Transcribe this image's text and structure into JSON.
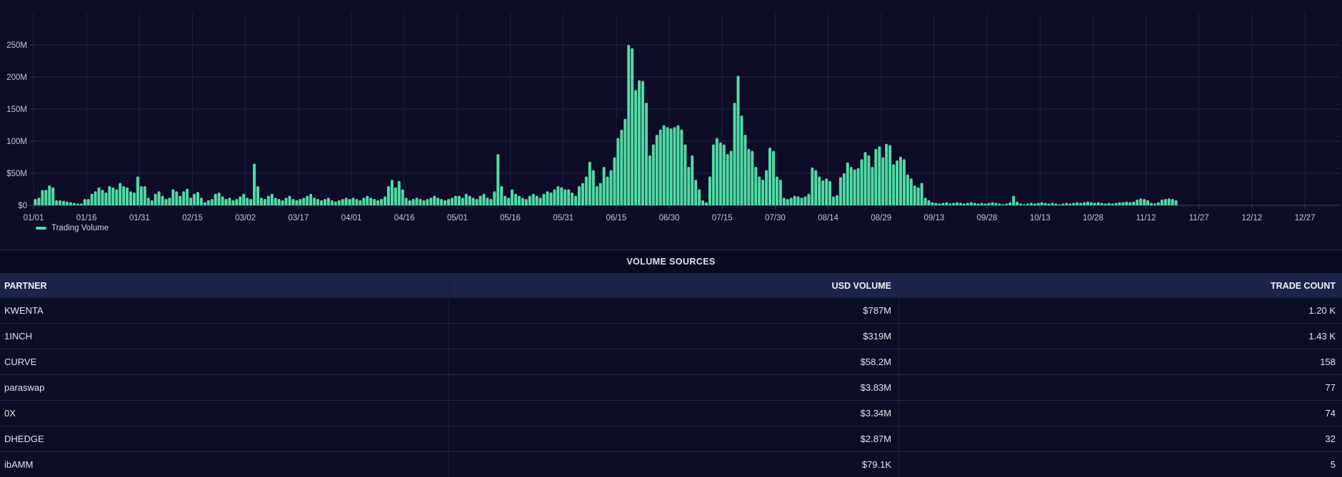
{
  "chart": {
    "legend_label": "Trading Volume",
    "y_axis_labels": [
      "$0",
      "$50M",
      "100M",
      "150M",
      "200M",
      "250M"
    ],
    "x_axis_labels": [
      "01/01",
      "01/16",
      "01/31",
      "02/15",
      "03/02",
      "03/17",
      "04/01",
      "04/16",
      "05/01",
      "05/16",
      "05/31",
      "06/15",
      "06/30",
      "07/15",
      "07/30",
      "08/14",
      "08/29",
      "09/13",
      "09/28",
      "10/13",
      "10/28",
      "11/12",
      "11/27",
      "12/12",
      "12/27"
    ]
  },
  "chart_data": {
    "type": "bar",
    "title": "",
    "xlabel": "",
    "ylabel": "",
    "unit": "USD millions",
    "ylim": [
      0,
      300
    ],
    "y_ticks_millions": [
      0,
      50,
      100,
      150,
      200,
      250
    ],
    "grid": true,
    "bar_color": "#4fdca4",
    "legend_position": "bottom-left",
    "series": [
      {
        "name": "Trading Volume",
        "x_start": "01/01",
        "x_frequency": "daily",
        "values_millions_usd": [
          10,
          12,
          24,
          24,
          31,
          28,
          8,
          8,
          7,
          6,
          5,
          4,
          3,
          3,
          10,
          10,
          18,
          22,
          28,
          24,
          20,
          30,
          28,
          25,
          35,
          30,
          28,
          22,
          20,
          45,
          30,
          30,
          12,
          8,
          18,
          22,
          15,
          10,
          12,
          25,
          22,
          15,
          22,
          26,
          12,
          18,
          21,
          12,
          5,
          8,
          10,
          18,
          20,
          14,
          10,
          12,
          8,
          10,
          14,
          18,
          12,
          10,
          65,
          30,
          12,
          10,
          15,
          18,
          12,
          10,
          8,
          12,
          15,
          10,
          8,
          10,
          12,
          15,
          18,
          12,
          10,
          8,
          10,
          12,
          8,
          6,
          8,
          10,
          12,
          10,
          12,
          10,
          8,
          12,
          15,
          12,
          10,
          8,
          10,
          14,
          30,
          40,
          28,
          38,
          25,
          12,
          8,
          10,
          12,
          10,
          8,
          10,
          12,
          15,
          12,
          10,
          8,
          10,
          12,
          15,
          15,
          12,
          18,
          15,
          12,
          10,
          15,
          18,
          12,
          10,
          22,
          80,
          30,
          15,
          12,
          25,
          18,
          15,
          12,
          10,
          15,
          18,
          15,
          12,
          18,
          22,
          20,
          25,
          30,
          28,
          25,
          25,
          20,
          15,
          30,
          35,
          45,
          68,
          55,
          30,
          35,
          60,
          45,
          55,
          75,
          105,
          118,
          135,
          250,
          245,
          180,
          195,
          194,
          160,
          78,
          95,
          110,
          118,
          125,
          122,
          120,
          122,
          125,
          118,
          95,
          60,
          78,
          40,
          25,
          8,
          5,
          45,
          95,
          105,
          98,
          95,
          80,
          85,
          160,
          202,
          140,
          110,
          88,
          85,
          60,
          45,
          40,
          55,
          90,
          85,
          45,
          40,
          12,
          10,
          12,
          15,
          14,
          12,
          14,
          18,
          59,
          55,
          45,
          39,
          42,
          38,
          14,
          16,
          44,
          50,
          67,
          60,
          56,
          58,
          72,
          83,
          78,
          60,
          88,
          92,
          75,
          96,
          94,
          64,
          70,
          76,
          72,
          48,
          42,
          31,
          28,
          35,
          12,
          8,
          5,
          4,
          3,
          4,
          5,
          3,
          4,
          5,
          4,
          3,
          4,
          5,
          4,
          3,
          4,
          3,
          4,
          5,
          4,
          3,
          2,
          3,
          5,
          15,
          6,
          3,
          2,
          3,
          4,
          3,
          4,
          5,
          4,
          3,
          4,
          3,
          2,
          3,
          4,
          3,
          4,
          5,
          4,
          5,
          6,
          5,
          4,
          5,
          4,
          3,
          4,
          3,
          4,
          5,
          5,
          6,
          5,
          6,
          9,
          11,
          10,
          8,
          4,
          3,
          5,
          9,
          10,
          11,
          10,
          8
        ]
      }
    ]
  },
  "table": {
    "title": "VOLUME SOURCES",
    "columns": [
      {
        "label": "PARTNER",
        "align": "left"
      },
      {
        "label": "USD VOLUME",
        "align": "right"
      },
      {
        "label": "TRADE COUNT",
        "align": "right"
      }
    ],
    "rows": [
      {
        "partner": "KWENTA",
        "usd_volume": "$787M",
        "trade_count": "1.20 K"
      },
      {
        "partner": "1INCH",
        "usd_volume": "$319M",
        "trade_count": "1.43 K"
      },
      {
        "partner": "CURVE",
        "usd_volume": "$58.2M",
        "trade_count": "158"
      },
      {
        "partner": "paraswap",
        "usd_volume": "$3.83M",
        "trade_count": "77"
      },
      {
        "partner": "0X",
        "usd_volume": "$3.34M",
        "trade_count": "74"
      },
      {
        "partner": "DHEDGE",
        "usd_volume": "$2.87M",
        "trade_count": "32"
      },
      {
        "partner": "ibAMM",
        "usd_volume": "$79.1K",
        "trade_count": "5"
      }
    ]
  },
  "colors": {
    "background": "#0d0d28",
    "bar": "#4fdca4",
    "h_gridline": "#23264b",
    "v_gridline": "#1e2142",
    "axis_line": "#3a3e63",
    "axis_label": "#c6c8d8",
    "table_title_bg": "#0a0a21",
    "table_header_bg": "#1f2249",
    "row_divider": "#23264b",
    "table_text": "#e4e6f1"
  }
}
